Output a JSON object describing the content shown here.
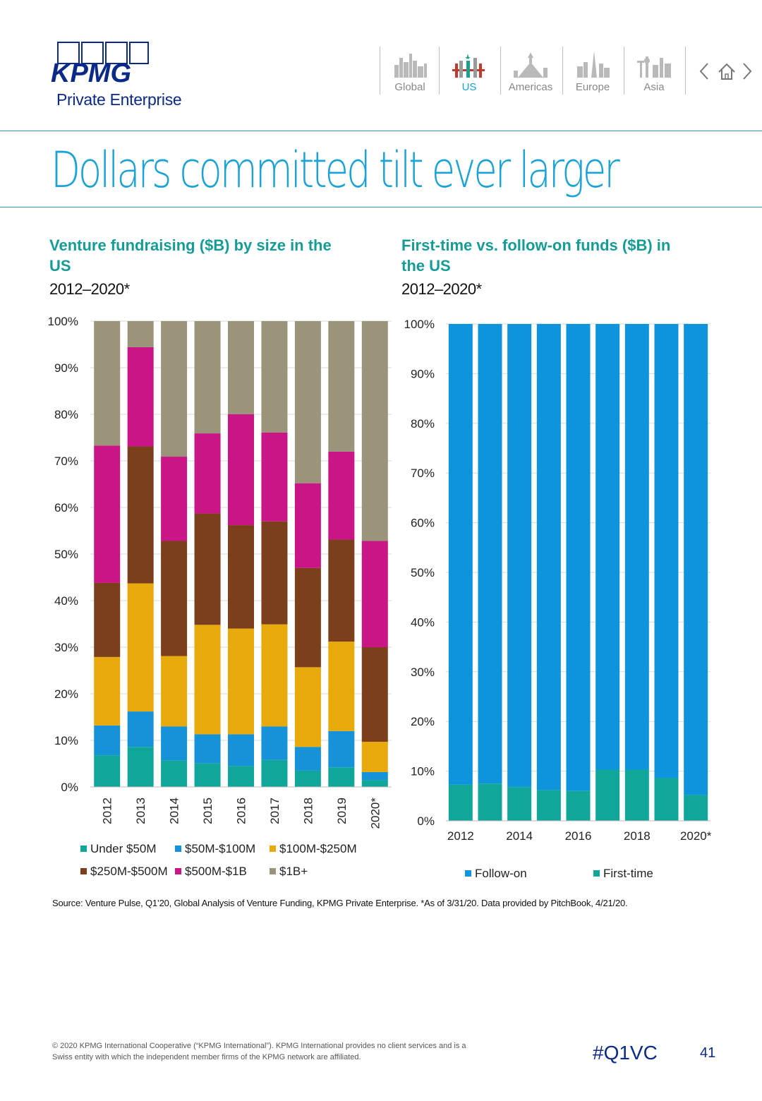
{
  "brand": {
    "logo_text": "KPMG",
    "subtitle": "Private Enterprise",
    "color": "#0a2a8a"
  },
  "nav": {
    "items": [
      {
        "label": "Global",
        "icon": "global-skyline-icon",
        "active": false
      },
      {
        "label": "US",
        "icon": "us-skyline-icon",
        "active": true
      },
      {
        "label": "Americas",
        "icon": "americas-skyline-icon",
        "active": false
      },
      {
        "label": "Europe",
        "icon": "europe-skyline-icon",
        "active": false
      },
      {
        "label": "Asia",
        "icon": "asia-skyline-icon",
        "active": false
      }
    ],
    "prev_icon": "chevron-left-icon",
    "home_icon": "home-icon",
    "next_icon": "chevron-right-icon"
  },
  "page_title": "Dollars committed tilt ever larger",
  "chart_data": [
    {
      "type": "bar",
      "stacked": true,
      "percent": true,
      "title": "Venture fundraising ($B) by size in the US",
      "subtitle": "2012–2020*",
      "categories": [
        "2012",
        "2013",
        "2014",
        "2015",
        "2016",
        "2017",
        "2018",
        "2019",
        "2020*"
      ],
      "y_ticks": [
        "0%",
        "10%",
        "20%",
        "30%",
        "40%",
        "50%",
        "60%",
        "70%",
        "80%",
        "90%",
        "100%"
      ],
      "ylim": [
        0,
        100
      ],
      "series": [
        {
          "name": "Under $50M",
          "color": "#10a69a",
          "values": [
            6.8,
            8.6,
            5.7,
            5.1,
            4.5,
            5.8,
            3.5,
            4.2,
            1.5
          ]
        },
        {
          "name": "$50M-$100M",
          "color": "#1692d9",
          "values": [
            6.4,
            7.6,
            7.3,
            6.2,
            6.8,
            7.2,
            5.1,
            7.8,
            1.7
          ]
        },
        {
          "name": "$100M-$250M",
          "color": "#e8a90a",
          "values": [
            14.7,
            27.5,
            15.1,
            23.5,
            22.7,
            21.9,
            17.1,
            19.2,
            6.5
          ]
        },
        {
          "name": "$250M-$500M",
          "color": "#7b3f1c",
          "values": [
            15.9,
            29.4,
            24.7,
            23.9,
            22.2,
            22.1,
            21.3,
            21.9,
            20.3
          ]
        },
        {
          "name": "$500M-$1B",
          "color": "#c91585",
          "values": [
            29.5,
            21.3,
            18.1,
            17.2,
            23.8,
            19.1,
            18.2,
            18.9,
            22.8
          ]
        },
        {
          "name": "$1B+",
          "color": "#9a957a",
          "values": [
            26.7,
            5.6,
            29.1,
            24.1,
            20.0,
            23.9,
            34.8,
            28.0,
            47.2
          ]
        }
      ]
    },
    {
      "type": "bar",
      "stacked": true,
      "percent": true,
      "title": "First-time vs. follow-on funds ($B) in the US",
      "subtitle": "2012–2020*",
      "categories": [
        "2012",
        "2013",
        "2014",
        "2015",
        "2016",
        "2017",
        "2018",
        "2019",
        "2020*"
      ],
      "x_tick_labels": [
        "2012",
        "",
        "2014",
        "",
        "2016",
        "",
        "2018",
        "",
        "2020*"
      ],
      "y_ticks": [
        "0%",
        "10%",
        "20%",
        "30%",
        "40%",
        "50%",
        "60%",
        "70%",
        "80%",
        "90%",
        "100%"
      ],
      "ylim": [
        0,
        100
      ],
      "series": [
        {
          "name": "First-time",
          "color": "#10a69a",
          "values": [
            7.3,
            7.5,
            6.8,
            6.2,
            6.0,
            10.3,
            10.3,
            8.6,
            5.2
          ]
        },
        {
          "name": "Follow-on",
          "color": "#0d94dc",
          "values": [
            92.7,
            92.5,
            93.2,
            93.8,
            94.0,
            89.7,
            89.7,
            91.4,
            94.8
          ]
        }
      ],
      "legend_order": [
        "Follow-on",
        "First-time"
      ]
    }
  ],
  "source": "Source: Venture Pulse, Q1’20, Global Analysis of Venture Funding, KPMG Private Enterprise. *As of 3/31/20. Data provided by PitchBook, 4/21/20.",
  "footer": {
    "copyright": "© 2020 KPMG International Cooperative (“KPMG International”). KPMG International provides no client services and is a Swiss entity with which the independent member firms of the KPMG network are affiliated.",
    "hashtag": "#Q1VC",
    "page_number": "41"
  }
}
